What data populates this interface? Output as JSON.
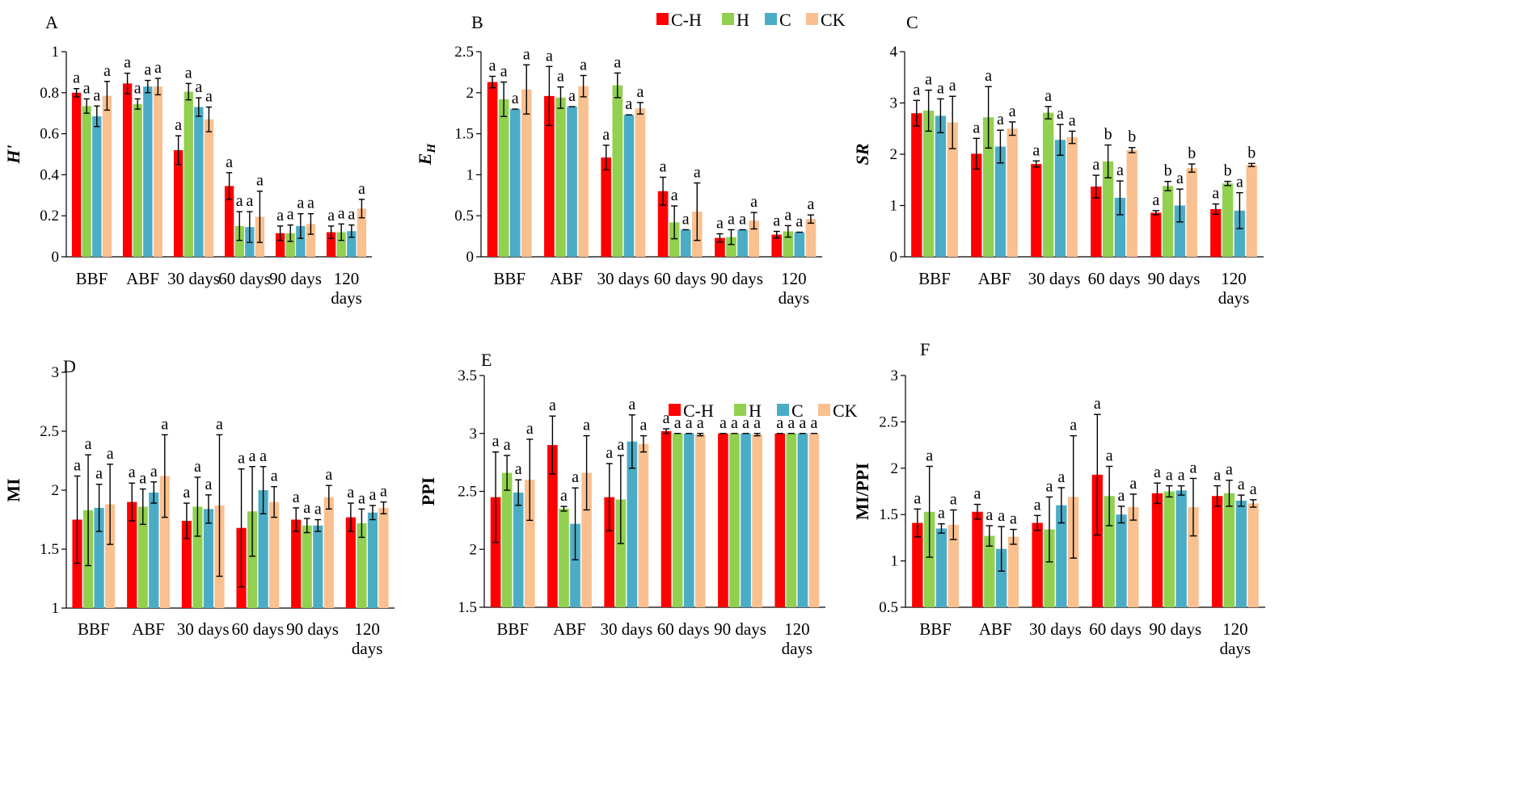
{
  "colors": {
    "C-H": "#ff0000",
    "H": "#92d050",
    "C": "#4bacc6",
    "CK": "#fac090"
  },
  "legend": {
    "labels": [
      "C-H",
      "H",
      "C",
      "CK"
    ]
  },
  "chart_data": [
    {
      "id": "A",
      "type": "bar",
      "letter": "A",
      "ylabel": "H'",
      "ylabel_style": "italic-bold",
      "ylim": [
        0,
        1
      ],
      "yticks": [
        "0",
        "0.2",
        "0.4",
        "0.6",
        "0.8",
        "1"
      ],
      "ytick_values": [
        0,
        0.2,
        0.4,
        0.6,
        0.8,
        1
      ],
      "categories": [
        [
          "BBF"
        ],
        [
          "ABF"
        ],
        [
          "30 days"
        ],
        [
          "60 days"
        ],
        [
          "90 days"
        ],
        [
          "120",
          "days"
        ]
      ],
      "series": [
        {
          "name": "C-H",
          "values": [
            0.8,
            0.845,
            0.52,
            0.345,
            0.115,
            0.12
          ],
          "errors": [
            0.02,
            0.05,
            0.07,
            0.065,
            0.035,
            0.03
          ]
        },
        {
          "name": "H",
          "values": [
            0.735,
            0.745,
            0.805,
            0.15,
            0.115,
            0.12
          ],
          "errors": [
            0.035,
            0.025,
            0.04,
            0.07,
            0.04,
            0.04
          ]
        },
        {
          "name": "C",
          "values": [
            0.685,
            0.83,
            0.73,
            0.145,
            0.15,
            0.125
          ],
          "errors": [
            0.05,
            0.03,
            0.045,
            0.075,
            0.06,
            0.03
          ]
        },
        {
          "name": "CK",
          "values": [
            0.785,
            0.83,
            0.67,
            0.195,
            0.16,
            0.235
          ],
          "errors": [
            0.07,
            0.04,
            0.06,
            0.125,
            0.05,
            0.045
          ]
        }
      ],
      "labels": [
        [
          "a",
          "a",
          "a",
          "a"
        ],
        [
          "a",
          "a",
          "a",
          "a"
        ],
        [
          "a",
          "a",
          "a",
          "a"
        ],
        [
          "a",
          "a",
          "a",
          "a"
        ],
        [
          "a",
          "a",
          "a",
          "a"
        ],
        [
          "a",
          "a",
          "a",
          "a"
        ]
      ]
    },
    {
      "id": "B",
      "type": "bar",
      "letter": "B",
      "ylabel": "EH",
      "ylabel_style": "subscript-h",
      "ylim": [
        0,
        2.5
      ],
      "yticks": [
        "0",
        "0.5",
        "1",
        "1.5",
        "2",
        "2.5"
      ],
      "ytick_values": [
        0,
        0.5,
        1,
        1.5,
        2,
        2.5
      ],
      "categories": [
        [
          "BBF"
        ],
        [
          "ABF"
        ],
        [
          "30 days"
        ],
        [
          "60 days"
        ],
        [
          "90 days"
        ],
        [
          "120",
          "days"
        ]
      ],
      "series": [
        {
          "name": "C-H",
          "values": [
            2.13,
            1.96,
            1.21,
            0.8,
            0.23,
            0.27
          ],
          "errors": [
            0.07,
            0.36,
            0.15,
            0.17,
            0.05,
            0.04
          ]
        },
        {
          "name": "H",
          "values": [
            1.92,
            1.94,
            2.09,
            0.42,
            0.24,
            0.31
          ],
          "errors": [
            0.21,
            0.13,
            0.15,
            0.2,
            0.09,
            0.07
          ]
        },
        {
          "name": "C",
          "values": [
            1.8,
            1.83,
            1.73,
            0.33,
            0.33,
            0.3
          ],
          "errors": [
            0,
            0,
            0,
            0,
            0,
            0
          ]
        },
        {
          "name": "CK",
          "values": [
            2.04,
            2.08,
            1.81,
            0.55,
            0.44,
            0.46
          ],
          "errors": [
            0.3,
            0.13,
            0.07,
            0.35,
            0.1,
            0.05
          ]
        }
      ],
      "labels": [
        [
          "a",
          "a",
          "a",
          "a"
        ],
        [
          "a",
          "a",
          "a",
          "a"
        ],
        [
          "a",
          "a",
          "a",
          "a"
        ],
        [
          "a",
          "a",
          "a",
          "a"
        ],
        [
          "a",
          "a",
          "a",
          "a"
        ],
        [
          "a",
          "a",
          "a",
          "a"
        ]
      ]
    },
    {
      "id": "C",
      "type": "bar",
      "letter": "C",
      "ylabel": "SR",
      "ylabel_style": "italic-bold",
      "ylim": [
        0,
        4
      ],
      "yticks": [
        "0",
        "1",
        "2",
        "3",
        "4"
      ],
      "ytick_values": [
        0,
        1,
        2,
        3,
        4
      ],
      "categories": [
        [
          "BBF"
        ],
        [
          "ABF"
        ],
        [
          "30 days"
        ],
        [
          "60 days"
        ],
        [
          "90 days"
        ],
        [
          "120",
          "days"
        ]
      ],
      "series": [
        {
          "name": "C-H",
          "values": [
            2.8,
            2.01,
            1.81,
            1.37,
            0.86,
            0.93
          ],
          "errors": [
            0.25,
            0.3,
            0.06,
            0.22,
            0.04,
            0.1
          ]
        },
        {
          "name": "H",
          "values": [
            2.85,
            2.72,
            2.81,
            1.86,
            1.38,
            1.43
          ],
          "errors": [
            0.4,
            0.6,
            0.12,
            0.32,
            0.09,
            0.04
          ]
        },
        {
          "name": "C",
          "values": [
            2.75,
            2.15,
            2.28,
            1.15,
            1.0,
            0.9
          ],
          "errors": [
            0.33,
            0.32,
            0.3,
            0.33,
            0.32,
            0.35
          ]
        },
        {
          "name": "CK",
          "values": [
            2.62,
            2.5,
            2.33,
            2.08,
            1.73,
            1.79
          ],
          "errors": [
            0.51,
            0.13,
            0.12,
            0.05,
            0.08,
            0.03
          ]
        }
      ],
      "labels": [
        [
          "a",
          "a",
          "a",
          "a"
        ],
        [
          "a",
          "a",
          "a",
          "a"
        ],
        [
          "a",
          "a",
          "a",
          "a"
        ],
        [
          "a",
          "b",
          "a",
          "b"
        ],
        [
          "a",
          "b",
          "a",
          "b"
        ],
        [
          "a",
          "b",
          "a",
          "b"
        ]
      ]
    },
    {
      "id": "D",
      "type": "bar",
      "letter": "D",
      "ylabel": "MI",
      "ylabel_style": "bold",
      "ylim": [
        1,
        3
      ],
      "yticks": [
        "1",
        "1.5",
        "2",
        "2.5",
        "3"
      ],
      "ytick_values": [
        1,
        1.5,
        2,
        2.5,
        3
      ],
      "categories": [
        [
          "BBF"
        ],
        [
          "ABF"
        ],
        [
          "30 days"
        ],
        [
          "60 days"
        ],
        [
          "90 days"
        ],
        [
          "120",
          "days"
        ]
      ],
      "series": [
        {
          "name": "C-H",
          "values": [
            1.75,
            1.9,
            1.74,
            1.68,
            1.75,
            1.77
          ],
          "errors": [
            0.37,
            0.16,
            0.15,
            0.5,
            0.1,
            0.12
          ]
        },
        {
          "name": "H",
          "values": [
            1.83,
            1.86,
            1.86,
            1.82,
            1.7,
            1.72
          ],
          "errors": [
            0.47,
            0.15,
            0.25,
            0.38,
            0.06,
            0.12
          ]
        },
        {
          "name": "C",
          "values": [
            1.85,
            1.98,
            1.84,
            2.0,
            1.7,
            1.81
          ],
          "errors": [
            0.2,
            0.09,
            0.12,
            0.2,
            0.05,
            0.06
          ]
        },
        {
          "name": "CK",
          "values": [
            1.88,
            2.12,
            1.87,
            1.9,
            1.94,
            1.85
          ],
          "errors": [
            0.34,
            0.35,
            0.6,
            0.13,
            0.1,
            0.05
          ]
        }
      ],
      "labels": [
        [
          "a",
          "a",
          "a",
          "a"
        ],
        [
          "a",
          "a",
          "a",
          "a"
        ],
        [
          "a",
          "a",
          "a",
          "a"
        ],
        [
          "a",
          "a",
          "a",
          "a"
        ],
        [
          "a",
          "a",
          "a",
          "a"
        ],
        [
          "a",
          "a",
          "a",
          "a"
        ]
      ]
    },
    {
      "id": "E",
      "type": "bar",
      "letter": "E",
      "ylabel": "PPI",
      "ylabel_style": "bold",
      "ylim": [
        1.5,
        3.5
      ],
      "yticks": [
        "1.5",
        "2",
        "2.5",
        "3",
        "3.5"
      ],
      "ytick_values": [
        1.5,
        2,
        2.5,
        3,
        3.5
      ],
      "categories": [
        [
          "BBF"
        ],
        [
          "ABF"
        ],
        [
          "30 days"
        ],
        [
          "60 days"
        ],
        [
          "90 days"
        ],
        [
          "120",
          "days"
        ]
      ],
      "series": [
        {
          "name": "C-H",
          "values": [
            2.45,
            2.9,
            2.45,
            3.02,
            3.0,
            3.0
          ],
          "errors": [
            0.39,
            0.25,
            0.29,
            0.02,
            0,
            0
          ]
        },
        {
          "name": "H",
          "values": [
            2.66,
            2.35,
            2.43,
            3.0,
            3.0,
            3.0
          ],
          "errors": [
            0.15,
            0.02,
            0.38,
            0,
            0,
            0
          ]
        },
        {
          "name": "C",
          "values": [
            2.49,
            2.22,
            2.93,
            3.0,
            3.0,
            3.0
          ],
          "errors": [
            0.11,
            0.31,
            0.23,
            0,
            0,
            0
          ]
        },
        {
          "name": "CK",
          "values": [
            2.6,
            2.66,
            2.91,
            2.99,
            2.99,
            3.0
          ],
          "errors": [
            0.35,
            0.32,
            0.07,
            0.01,
            0.01,
            0
          ]
        }
      ],
      "labels": [
        [
          "a",
          "a",
          "a",
          "a"
        ],
        [
          "a",
          "a",
          "a",
          "a"
        ],
        [
          "a",
          "a",
          "a",
          "a"
        ],
        [
          "a",
          "a",
          "a",
          "a"
        ],
        [
          "a",
          "a",
          "a",
          "a"
        ],
        [
          "a",
          "a",
          "a",
          "a"
        ]
      ]
    },
    {
      "id": "F",
      "type": "bar",
      "letter": "F",
      "ylabel": "MI/PPI",
      "ylabel_style": "bold",
      "ylim": [
        0.5,
        3
      ],
      "yticks": [
        "0.5",
        "1",
        "1.5",
        "2",
        "2.5",
        "3"
      ],
      "ytick_values": [
        0.5,
        1,
        1.5,
        2,
        2.5,
        3
      ],
      "categories": [
        [
          "BBF"
        ],
        [
          "ABF"
        ],
        [
          "30 days"
        ],
        [
          "60 days"
        ],
        [
          "90 days"
        ],
        [
          "120",
          "days"
        ]
      ],
      "series": [
        {
          "name": "C-H",
          "values": [
            1.41,
            1.53,
            1.41,
            1.93,
            1.73,
            1.7
          ],
          "errors": [
            0.15,
            0.08,
            0.08,
            0.65,
            0.11,
            0.11
          ]
        },
        {
          "name": "H",
          "values": [
            1.53,
            1.27,
            1.34,
            1.7,
            1.75,
            1.73
          ],
          "errors": [
            0.49,
            0.11,
            0.35,
            0.32,
            0.06,
            0.14
          ]
        },
        {
          "name": "C",
          "values": [
            1.35,
            1.13,
            1.6,
            1.5,
            1.76,
            1.65
          ],
          "errors": [
            0.05,
            0.24,
            0.19,
            0.09,
            0.05,
            0.06
          ]
        },
        {
          "name": "CK",
          "values": [
            1.39,
            1.26,
            1.69,
            1.58,
            1.58,
            1.62
          ],
          "errors": [
            0.16,
            0.08,
            0.66,
            0.14,
            0.31,
            0.04
          ]
        }
      ],
      "labels": [
        [
          "a",
          "a",
          "a",
          "a"
        ],
        [
          "a",
          "a",
          "a",
          "a"
        ],
        [
          "a",
          "a",
          "a",
          "a"
        ],
        [
          "a",
          "a",
          "a",
          "a"
        ],
        [
          "a",
          "a",
          "a",
          "a"
        ],
        [
          "a",
          "a",
          "a",
          "a"
        ]
      ]
    }
  ]
}
